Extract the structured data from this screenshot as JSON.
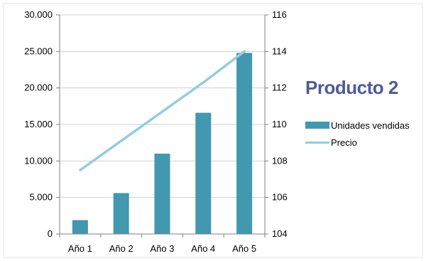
{
  "chart_data": {
    "type": "bar-line-combo",
    "title": "Producto 2",
    "categories": [
      "Año 1",
      "Año 2",
      "Año 3",
      "Año 4",
      "Año 5"
    ],
    "series": [
      {
        "name": "Unidades vendidas",
        "type": "bar",
        "axis": "left",
        "color": "#4198AF",
        "values": [
          1900,
          5600,
          11000,
          16600,
          24800
        ]
      },
      {
        "name": "Precio",
        "type": "line",
        "axis": "right",
        "color": "#93CDDD",
        "values": [
          107.5,
          109.1,
          110.7,
          112.3,
          114.0
        ]
      }
    ],
    "y_left": {
      "ylim": [
        0,
        30000
      ],
      "ticks": [
        0,
        5000,
        10000,
        15000,
        20000,
        25000,
        30000
      ],
      "tick_labels": [
        "0",
        "5.000",
        "10.000",
        "15.000",
        "20.000",
        "25.000",
        "30.000"
      ]
    },
    "y_right": {
      "ylim": [
        104,
        116
      ],
      "ticks": [
        104,
        106,
        108,
        110,
        112,
        114,
        116
      ],
      "tick_labels": [
        "104",
        "106",
        "108",
        "110",
        "112",
        "114",
        "116"
      ]
    },
    "grid": true,
    "legend_position": "right",
    "title_color": "#4F5A9A",
    "axis_color": "#808080",
    "grid_color": "#D0D0D0"
  }
}
